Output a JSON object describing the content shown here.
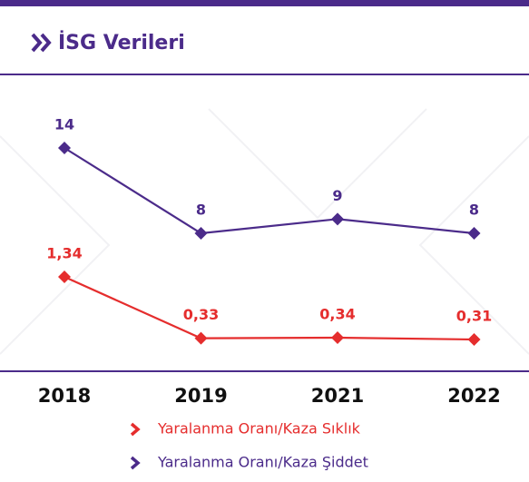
{
  "chart_data": {
    "type": "line",
    "title": "İSG Verileri",
    "categories": [
      "2018",
      "2019",
      "2021",
      "2022"
    ],
    "series": [
      {
        "name": "Yaralanma Oranı/Kaza Sıklık",
        "color": "#e52d2d",
        "values": [
          1.34,
          0.33,
          0.34,
          0.31
        ],
        "value_labels": [
          "1,34",
          "0,33",
          "0,34",
          "0,31"
        ]
      },
      {
        "name": "Yaralanma Oranı/Kaza Şiddet",
        "color": "#4b2b8a",
        "values": [
          14,
          8,
          9,
          8
        ]
      }
    ]
  }
}
